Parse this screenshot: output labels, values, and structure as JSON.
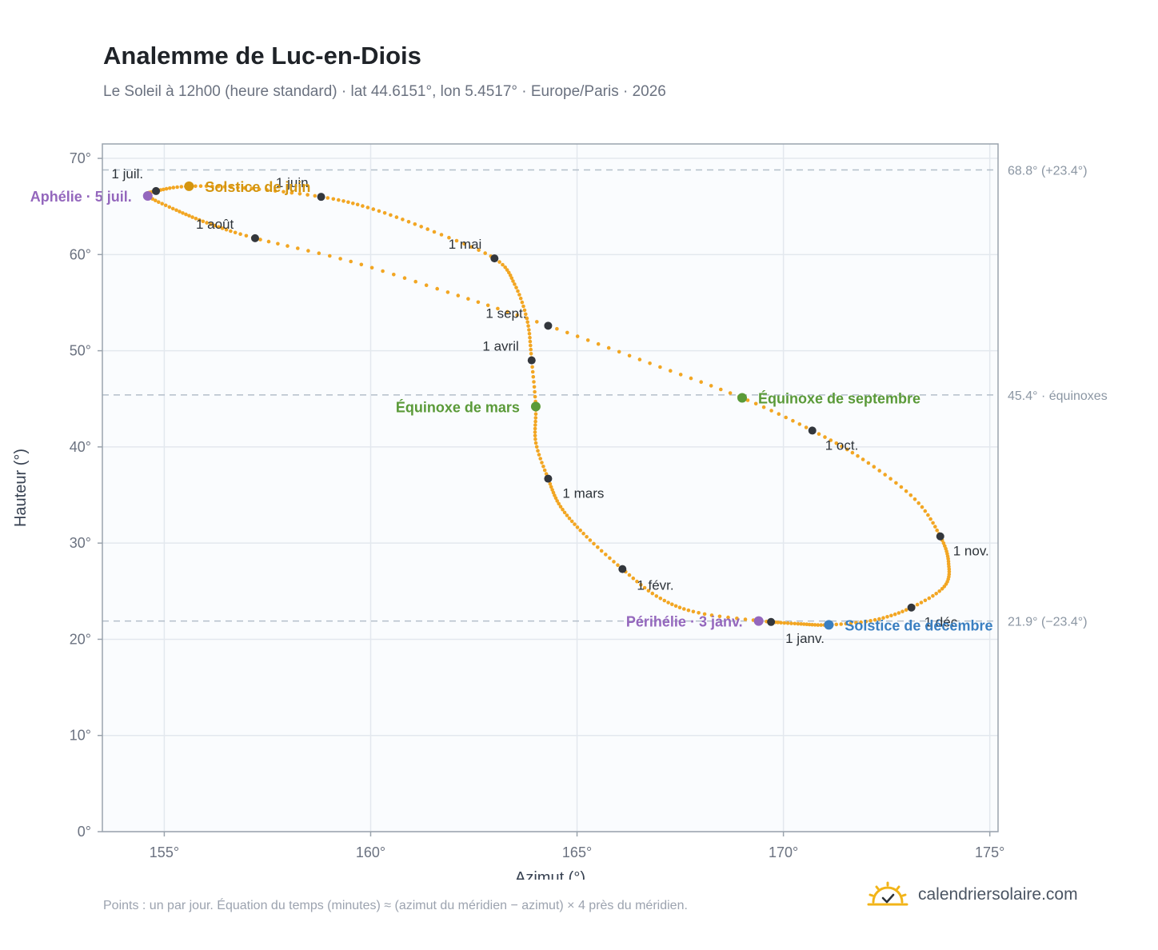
{
  "header": {
    "title": "Analemme de Luc-en-Diois",
    "subtitle": "Le Soleil à 12h00 (heure standard) · lat 44.6151°, lon 5.4517° · Europe/Paris · 2026"
  },
  "footer": {
    "note": "Points : un par jour. Équation du temps (minutes) ≈ (azimut du méridien − azimut) × 4 près du méridien.",
    "brand": "calendriersolaire.com",
    "brand_icon": "sun-check-icon"
  },
  "colors": {
    "curve": "#f2a623",
    "month_dot": "#33373d",
    "summer": "#d4950f",
    "equinox": "#5a9a38",
    "perihelion": "#9467bd",
    "winter": "#3a7fc1",
    "plot_bg": "#fafcfe",
    "grid": "#e3e8ee",
    "frame": "#9aa3ad"
  },
  "chart_data": {
    "type": "scatter",
    "title": "Analemme de Luc-en-Diois",
    "xlabel": "Azimut (°)",
    "ylabel": "Hauteur (°)",
    "xlim": [
      153.5,
      175.2
    ],
    "ylim": [
      0,
      71.5
    ],
    "xticks": [
      155,
      160,
      165,
      170,
      175
    ],
    "yticks": [
      0,
      10,
      20,
      30,
      40,
      50,
      60,
      70
    ],
    "grid": true,
    "month_points": [
      {
        "label": "1 janv.",
        "az": 169.7,
        "alt": 21.8
      },
      {
        "label": "1 févr.",
        "az": 166.1,
        "alt": 27.3
      },
      {
        "label": "1 mars",
        "az": 164.3,
        "alt": 36.7
      },
      {
        "label": "1 avril",
        "az": 163.9,
        "alt": 49.0
      },
      {
        "label": "1 mai",
        "az": 163.0,
        "alt": 59.6
      },
      {
        "label": "1 juin",
        "az": 158.8,
        "alt": 66.0
      },
      {
        "label": "1 juil.",
        "az": 154.8,
        "alt": 66.6
      },
      {
        "label": "1 août",
        "az": 157.2,
        "alt": 61.7
      },
      {
        "label": "1 sept.",
        "az": 164.3,
        "alt": 52.6
      },
      {
        "label": "1 oct.",
        "az": 170.7,
        "alt": 41.7
      },
      {
        "label": "1 nov.",
        "az": 173.8,
        "alt": 30.7
      },
      {
        "label": "1 déc.",
        "az": 173.1,
        "alt": 23.3
      }
    ],
    "events": [
      {
        "label": "Solstice de juin",
        "az": 155.6,
        "alt": 67.1,
        "color_key": "summer"
      },
      {
        "label": "Aphélie · 5 juil.",
        "az": 154.6,
        "alt": 66.1,
        "color_key": "perihelion"
      },
      {
        "label": "Équinoxe de mars",
        "az": 164.0,
        "alt": 44.2,
        "color_key": "equinox"
      },
      {
        "label": "Équinoxe de septembre",
        "az": 169.0,
        "alt": 45.1,
        "color_key": "equinox"
      },
      {
        "label": "Périhélie · 3 janv.",
        "az": 169.4,
        "alt": 21.9,
        "color_key": "perihelion"
      },
      {
        "label": "Solstice de décembre",
        "az": 171.1,
        "alt": 21.5,
        "color_key": "winter"
      }
    ],
    "reference_lines": [
      {
        "alt": 68.8,
        "label": "68.8° (+23.4°)"
      },
      {
        "alt": 45.4,
        "label": "45.4° · équinoxes"
      },
      {
        "alt": 21.9,
        "label": "21.9° (−23.4°)"
      }
    ],
    "curve_path": [
      {
        "az": 169.7,
        "alt": 21.8
      },
      {
        "az": 168.0,
        "alt": 22.7
      },
      {
        "az": 167.0,
        "alt": 24.3
      },
      {
        "az": 166.1,
        "alt": 27.3
      },
      {
        "az": 165.2,
        "alt": 30.8
      },
      {
        "az": 164.6,
        "alt": 33.8
      },
      {
        "az": 164.3,
        "alt": 36.7
      },
      {
        "az": 164.0,
        "alt": 40.5
      },
      {
        "az": 164.0,
        "alt": 44.2
      },
      {
        "az": 163.9,
        "alt": 49.0
      },
      {
        "az": 163.8,
        "alt": 53.0
      },
      {
        "az": 163.5,
        "alt": 56.8
      },
      {
        "az": 163.0,
        "alt": 59.6
      },
      {
        "az": 161.4,
        "alt": 62.6
      },
      {
        "az": 160.0,
        "alt": 64.8
      },
      {
        "az": 158.8,
        "alt": 66.0
      },
      {
        "az": 157.0,
        "alt": 66.9
      },
      {
        "az": 155.6,
        "alt": 67.1
      },
      {
        "az": 154.8,
        "alt": 66.6
      },
      {
        "az": 154.6,
        "alt": 66.1
      },
      {
        "az": 155.3,
        "alt": 64.6
      },
      {
        "az": 156.1,
        "alt": 63.2
      },
      {
        "az": 157.2,
        "alt": 61.7
      },
      {
        "az": 159.5,
        "alt": 59.3
      },
      {
        "az": 162.0,
        "alt": 55.9
      },
      {
        "az": 164.3,
        "alt": 52.6
      },
      {
        "az": 166.7,
        "alt": 48.8
      },
      {
        "az": 169.0,
        "alt": 45.1
      },
      {
        "az": 170.7,
        "alt": 41.7
      },
      {
        "az": 172.0,
        "alt": 38.5
      },
      {
        "az": 173.2,
        "alt": 34.5
      },
      {
        "az": 173.8,
        "alt": 30.7
      },
      {
        "az": 174.0,
        "alt": 28.0
      },
      {
        "az": 173.9,
        "alt": 25.5
      },
      {
        "az": 173.1,
        "alt": 23.3
      },
      {
        "az": 172.2,
        "alt": 22.0
      },
      {
        "az": 171.1,
        "alt": 21.5
      },
      {
        "az": 170.4,
        "alt": 21.6
      },
      {
        "az": 169.7,
        "alt": 21.8
      }
    ]
  }
}
